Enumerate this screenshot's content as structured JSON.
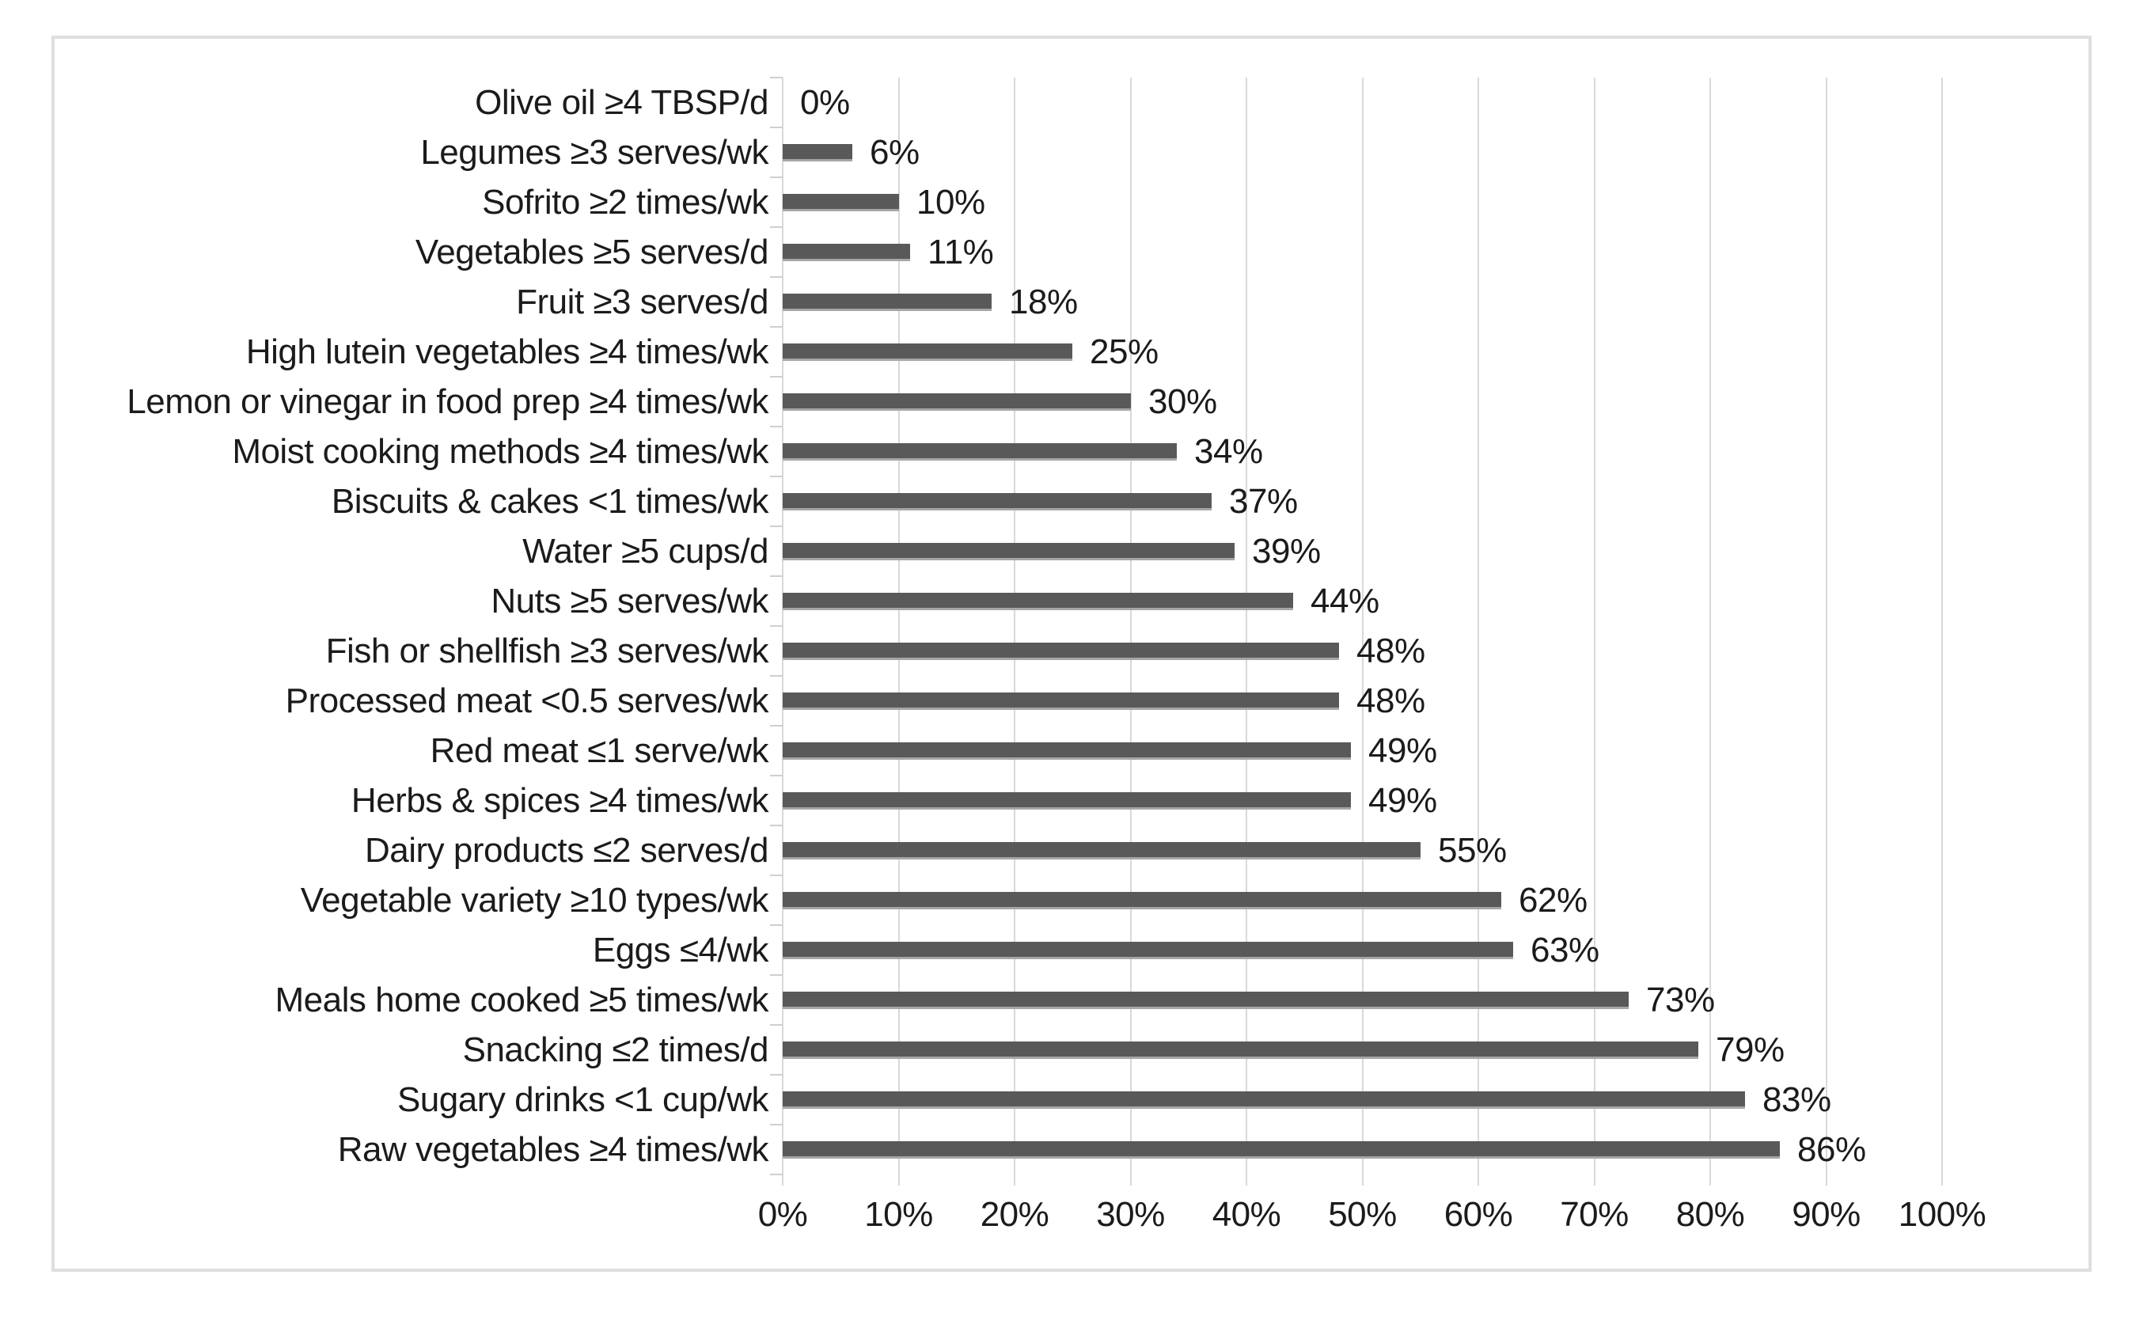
{
  "chart_data": {
    "type": "bar",
    "orientation": "horizontal",
    "title": "",
    "xlabel": "",
    "ylabel": "",
    "grid": true,
    "legend": false,
    "xlim": [
      0,
      100
    ],
    "x_tick_step": 10,
    "x_ticks": [
      "0%",
      "10%",
      "20%",
      "30%",
      "40%",
      "50%",
      "60%",
      "70%",
      "80%",
      "90%",
      "100%"
    ],
    "categories": [
      "Olive oil ≥4 TBSP/d",
      "Legumes ≥3 serves/wk",
      "Sofrito ≥2 times/wk",
      "Vegetables ≥5 serves/d",
      "Fruit ≥3 serves/d",
      "High lutein vegetables ≥4 times/wk",
      "Lemon or vinegar in food prep ≥4 times/wk",
      "Moist cooking methods ≥4 times/wk",
      "Biscuits & cakes <1 times/wk",
      "Water ≥5 cups/d",
      "Nuts ≥5 serves/wk",
      "Fish or shellfish ≥3 serves/wk",
      "Processed meat <0.5 serves/wk",
      "Red meat ≤1 serve/wk",
      "Herbs & spices ≥4 times/wk",
      "Dairy products ≤2 serves/d",
      "Vegetable variety ≥10 types/wk",
      "Eggs ≤4/wk",
      "Meals home cooked ≥5 times/wk",
      "Snacking ≤2 times/d",
      "Sugary drinks <1 cup/wk",
      "Raw vegetables ≥4 times/wk"
    ],
    "values": [
      0,
      6,
      10,
      11,
      18,
      25,
      30,
      34,
      37,
      39,
      44,
      48,
      48,
      49,
      49,
      55,
      62,
      63,
      73,
      79,
      83,
      86
    ],
    "value_labels": [
      "0%",
      "6%",
      "10%",
      "11%",
      "18%",
      "25%",
      "30%",
      "34%",
      "37%",
      "39%",
      "44%",
      "48%",
      "48%",
      "49%",
      "49%",
      "55%",
      "62%",
      "63%",
      "73%",
      "79%",
      "83%",
      "86%"
    ],
    "colors": {
      "bar_fill": "#595959",
      "bar_bottom_edge": "#a6a6a6",
      "gridline": "#d9d9d9",
      "axis_tick": "#cfcfcf",
      "panel_border": "#dfdfdf",
      "text": "#1b1b1b",
      "background": "#ffffff"
    }
  }
}
